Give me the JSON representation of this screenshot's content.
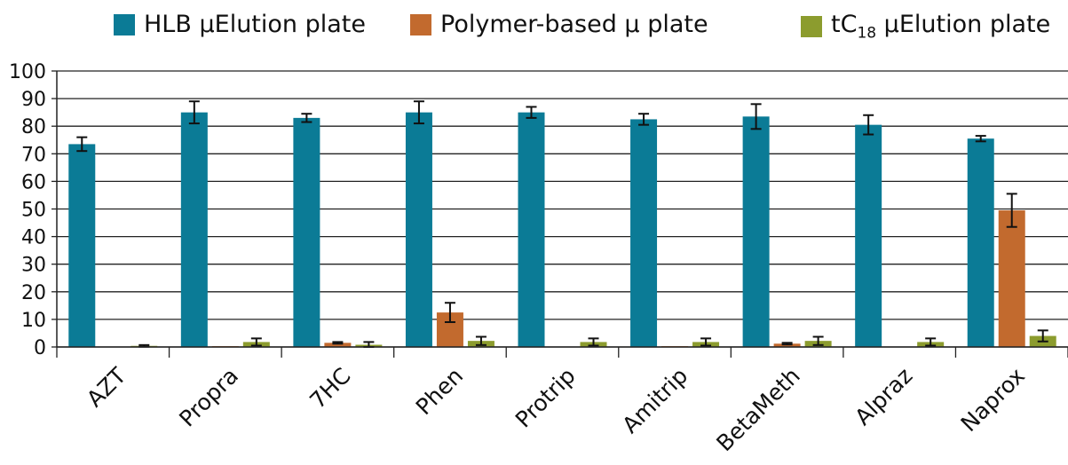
{
  "chart_data": {
    "type": "bar",
    "title": "",
    "xlabel": "",
    "ylabel": "",
    "ylim": [
      0,
      100
    ],
    "yticks": [
      0,
      10,
      20,
      30,
      40,
      50,
      60,
      70,
      80,
      90,
      100
    ],
    "grid": true,
    "legend_position": "top",
    "categories": [
      "AZT",
      "Propra",
      "7HC",
      "Phen",
      "Protrip",
      "Amitrip",
      "BetaMeth",
      "Alpraz",
      "Naprox"
    ],
    "series": [
      {
        "name": "HLB μElution plate",
        "color": "#0b7b96",
        "values": [
          73.5,
          85,
          83,
          85,
          85,
          82.5,
          83.5,
          80.5,
          75.5
        ],
        "errors": [
          2.5,
          4,
          1.5,
          4,
          2,
          2,
          4.5,
          3.5,
          1
        ]
      },
      {
        "name": "Polymer-based μ plate",
        "color": "#c26a2e",
        "values": [
          0,
          0.3,
          1.5,
          12.5,
          0,
          0.3,
          1.2,
          0,
          49.5
        ],
        "errors": [
          0,
          0,
          0.3,
          3.5,
          0,
          0,
          0.3,
          0,
          6
        ]
      },
      {
        "name": "tC18 μElution plate",
        "name_parts": {
          "prefix": "tC",
          "sub": "18",
          "suffix": " μElution plate"
        },
        "color": "#8c9c2e",
        "values": [
          0.4,
          1.8,
          0.8,
          2.2,
          1.8,
          1.8,
          2.2,
          1.8,
          4
        ],
        "errors": [
          0.3,
          1.3,
          1,
          1.5,
          1.3,
          1.3,
          1.5,
          1.3,
          2
        ]
      }
    ]
  }
}
